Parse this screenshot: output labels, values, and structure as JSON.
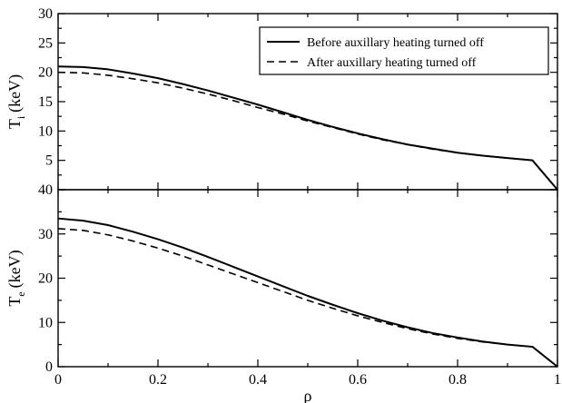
{
  "chart_data": [
    {
      "type": "line",
      "panel": "top",
      "ylabel_main": "T",
      "ylabel_sub": "i",
      "ylabel_unit": "(keV)",
      "xlim": [
        0,
        1
      ],
      "ylim": [
        0,
        30
      ],
      "yticks": [
        5,
        10,
        15,
        20,
        25,
        30
      ],
      "ytick_labels": [
        "5",
        "10",
        "15",
        "20",
        "25",
        "30"
      ],
      "legend_placement": "top-right",
      "series": [
        {
          "name": "Before auxillary heating turned off",
          "style": "solid",
          "x": [
            0,
            0.05,
            0.1,
            0.15,
            0.2,
            0.25,
            0.3,
            0.35,
            0.4,
            0.45,
            0.5,
            0.55,
            0.6,
            0.65,
            0.7,
            0.75,
            0.8,
            0.85,
            0.9,
            0.95,
            1.0
          ],
          "y": [
            21.0,
            20.9,
            20.5,
            19.8,
            19.0,
            18.0,
            16.9,
            15.7,
            14.5,
            13.2,
            11.9,
            10.7,
            9.6,
            8.6,
            7.7,
            7.0,
            6.3,
            5.8,
            5.4,
            5.0,
            0.0
          ]
        },
        {
          "name": "After auxillary heating turned off",
          "style": "dashed",
          "x": [
            0,
            0.05,
            0.1,
            0.15,
            0.2,
            0.25,
            0.3,
            0.35,
            0.4,
            0.45,
            0.5,
            0.55,
            0.6,
            0.65,
            0.7,
            0.75,
            0.8,
            0.85,
            0.9,
            0.95,
            1.0
          ],
          "y": [
            20.0,
            19.9,
            19.5,
            18.9,
            18.2,
            17.3,
            16.3,
            15.2,
            14.0,
            12.9,
            11.7,
            10.6,
            9.5,
            8.5,
            7.7,
            6.9,
            6.3,
            5.8,
            5.4,
            5.0,
            0.0
          ]
        }
      ]
    },
    {
      "type": "line",
      "panel": "bottom",
      "xlabel": "ρ",
      "ylabel_main": "T",
      "ylabel_sub": "e",
      "ylabel_unit": "(keV)",
      "xlim": [
        0,
        1
      ],
      "ylim": [
        0,
        40
      ],
      "xticks": [
        0,
        0.2,
        0.4,
        0.6,
        0.8,
        1
      ],
      "xtick_labels": [
        "0",
        "0.2",
        "0.4",
        "0.6",
        "0.8",
        "1"
      ],
      "yticks": [
        0,
        10,
        20,
        30,
        40
      ],
      "ytick_labels": [
        "0",
        "10",
        "20",
        "30",
        "40"
      ],
      "series": [
        {
          "name": "Before auxillary heating turned off",
          "style": "solid",
          "x": [
            0,
            0.05,
            0.1,
            0.15,
            0.2,
            0.25,
            0.3,
            0.35,
            0.4,
            0.45,
            0.5,
            0.55,
            0.6,
            0.65,
            0.7,
            0.75,
            0.8,
            0.85,
            0.9,
            0.95,
            1.0
          ],
          "y": [
            33.5,
            33.0,
            32.0,
            30.5,
            28.8,
            26.9,
            24.8,
            22.6,
            20.4,
            18.2,
            16.0,
            14.0,
            12.1,
            10.4,
            8.9,
            7.6,
            6.6,
            5.7,
            5.0,
            4.5,
            0.0
          ]
        },
        {
          "name": "After auxillary heating turned off",
          "style": "dashed",
          "x": [
            0,
            0.05,
            0.1,
            0.15,
            0.2,
            0.25,
            0.3,
            0.35,
            0.4,
            0.45,
            0.5,
            0.55,
            0.6,
            0.65,
            0.7,
            0.75,
            0.8,
            0.85,
            0.9,
            0.95,
            1.0
          ],
          "y": [
            31.2,
            30.8,
            29.8,
            28.4,
            26.8,
            25.0,
            23.0,
            21.0,
            19.0,
            17.0,
            15.0,
            13.2,
            11.5,
            10.0,
            8.6,
            7.4,
            6.4,
            5.6,
            5.0,
            4.5,
            0.0
          ]
        }
      ]
    }
  ]
}
